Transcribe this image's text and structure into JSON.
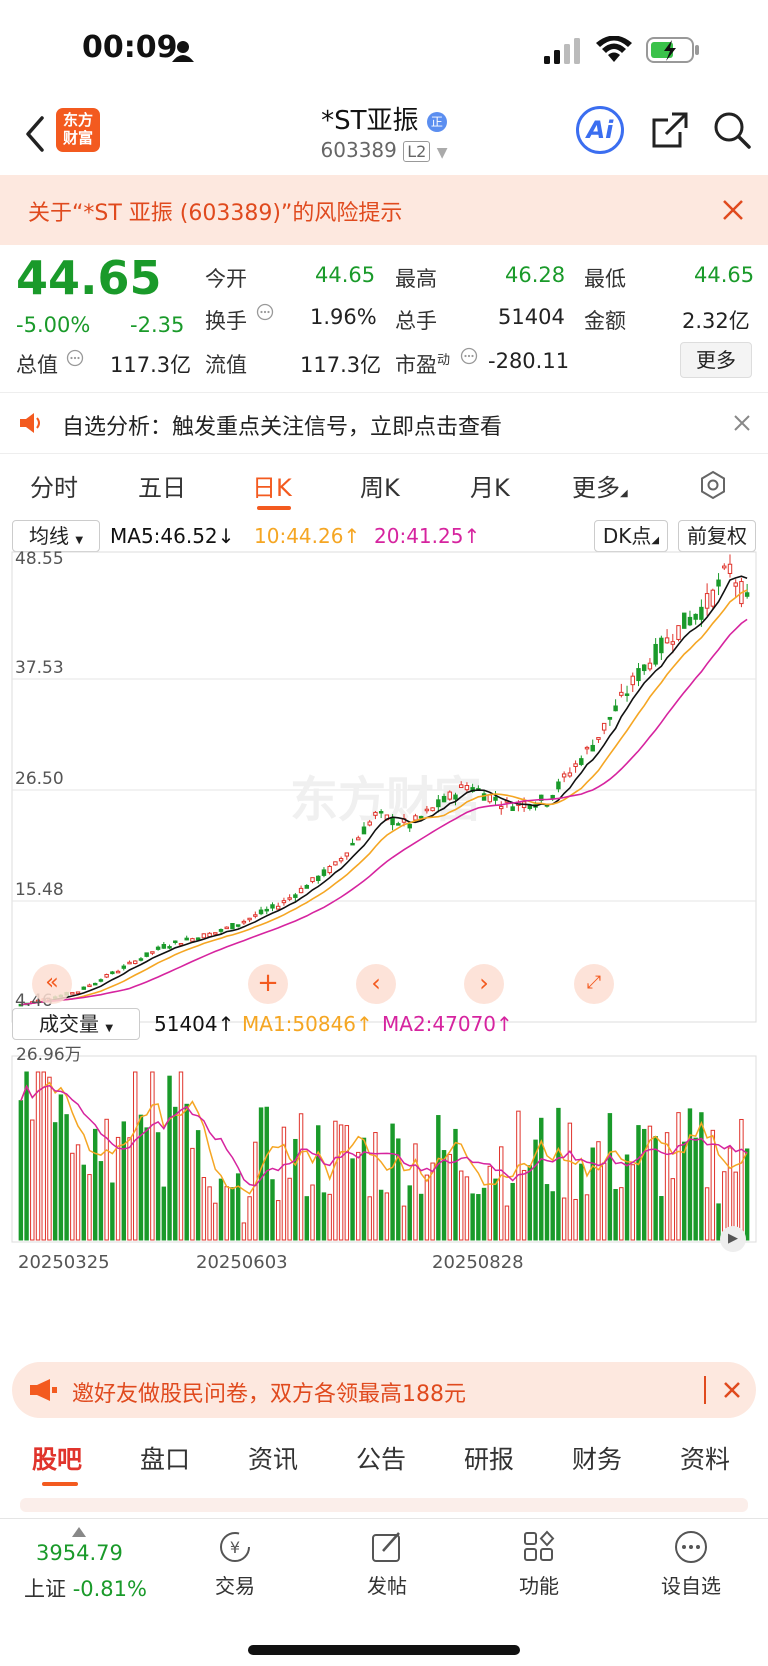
{
  "status_bar": {
    "time": "00:09",
    "battery_icon": "battery-charging-icon"
  },
  "header": {
    "logo_line1": "东方",
    "logo_line2": "财富",
    "stock_name": "*ST亚振",
    "badge": "正",
    "code": "603389",
    "level": "L2",
    "ai_label": "Ai"
  },
  "warning": {
    "text": "关于“*ST 亚振 (603389)”的风险提示"
  },
  "quote": {
    "price": "44.65",
    "change_pct": "-5.00%",
    "change": "-2.35",
    "open_label": "今开",
    "open": "44.65",
    "high_label": "最高",
    "high": "46.28",
    "low_label": "最低",
    "low": "44.65",
    "turnover_label": "换手",
    "turnover": "1.96%",
    "volume_label": "总手",
    "volume": "51404",
    "amount_label": "金额",
    "amount": "2.32亿",
    "mktcap_label": "总值",
    "mktcap": "117.3亿",
    "float_label": "流值",
    "float": "117.3亿",
    "pe_label": "市盈",
    "pe_sup": "动",
    "pe": "-280.11",
    "more_label": "更多"
  },
  "notice": {
    "text": "自选分析：触发重点关注信号，立即点击查看"
  },
  "chart_tabs": [
    "分时",
    "五日",
    "日K",
    "周K",
    "月K",
    "更多"
  ],
  "chart_tabs_active": 2,
  "indicator_bar": {
    "selector": "均线",
    "ma5": "MA5:46.52↓",
    "ma10": "10:44.26↑",
    "ma20": "20:41.25↑",
    "dk": "DK点",
    "adjust": "前复权"
  },
  "price_axis": [
    "48.55",
    "37.53",
    "26.50",
    "15.48",
    "4.46"
  ],
  "volume_bar": {
    "selector": "成交量",
    "vol": "51404↑",
    "ma1": "MA1:50846↑",
    "ma2": "MA2:47070↑",
    "max_label": "26.96万"
  },
  "date_axis": [
    "20250325",
    "20250603",
    "20250828"
  ],
  "watermark": "东方财富",
  "colors": {
    "up": "#e0342c",
    "down": "#1a9a2a",
    "ma5": "#111111",
    "ma10": "#f5a623",
    "ma20": "#d6249f",
    "accent": "#f35a1f"
  },
  "banner": {
    "text": "邀好友做股民问卷，双方各领最高188元"
  },
  "bottom_tabs": [
    "股吧",
    "盘口",
    "资讯",
    "公告",
    "研报",
    "财务",
    "资料"
  ],
  "bottom_tabs_active": 0,
  "footer": {
    "index_value": "3954.79",
    "index_name": "上证",
    "index_change": "-0.81%",
    "trade": "交易",
    "post": "发帖",
    "functions": "功能",
    "watchlist": "设自选"
  }
}
